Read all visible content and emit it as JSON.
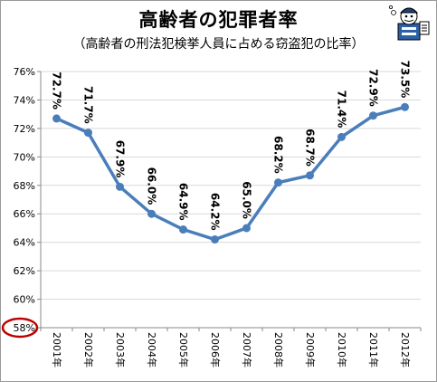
{
  "chart_data": {
    "type": "line",
    "title": "高齢者の犯罪者率",
    "subtitle": "（高齢者の刑法犯検挙人員に占める窃盗犯の比率）",
    "categories": [
      "2001年",
      "2002年",
      "2003年",
      "2004年",
      "2005年",
      "2006年",
      "2007年",
      "2008年",
      "2009年",
      "2010年",
      "2011年",
      "2012年"
    ],
    "series": [
      {
        "values": [
          72.7,
          71.7,
          67.9,
          66.0,
          64.9,
          64.2,
          65.0,
          68.2,
          68.7,
          71.4,
          72.9,
          73.5
        ]
      }
    ],
    "data_labels": [
      "72.7%",
      "71.7%",
      "67.9%",
      "66.0%",
      "64.9%",
      "64.2%",
      "65.0%",
      "68.2%",
      "68.7%",
      "71.4%",
      "72.9%",
      "73.5%"
    ],
    "y_ticks": [
      58,
      60,
      62,
      64,
      66,
      68,
      70,
      72,
      74,
      76
    ],
    "y_tick_labels": [
      "58%",
      "60%",
      "62%",
      "64%",
      "66%",
      "68%",
      "70%",
      "72%",
      "74%",
      "76%"
    ],
    "ylim": [
      58,
      76
    ],
    "grid": true,
    "line_color": "#4a7ebb",
    "grid_color": "#d9d9d9",
    "highlight_tick": "58%",
    "highlight_color": "#c00000",
    "mascot_icon": "newspaper-reader-mascot-icon"
  }
}
